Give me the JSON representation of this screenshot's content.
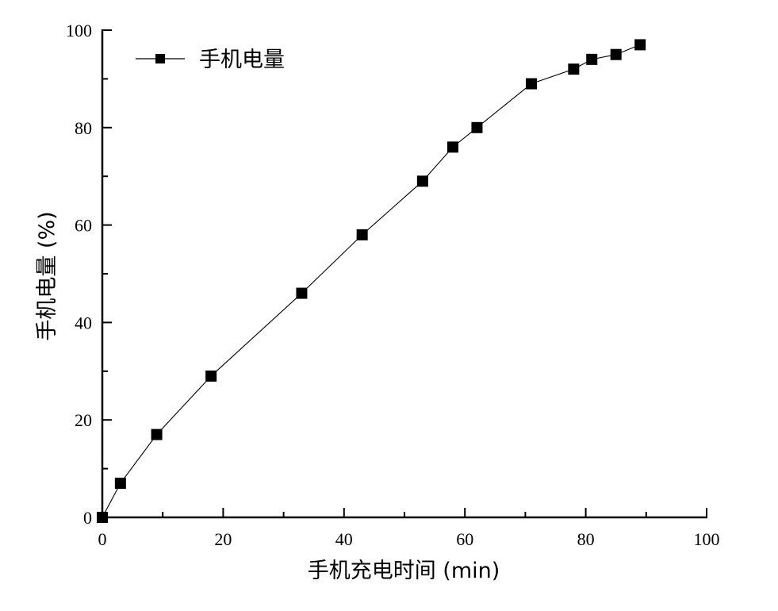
{
  "chart_data": {
    "type": "line",
    "title": "",
    "xlabel": "手机充电时间 (min)",
    "ylabel": "手机电量 (%)",
    "xlim": [
      0,
      100
    ],
    "ylim": [
      0,
      100
    ],
    "x_ticks": [
      "0",
      "20",
      "40",
      "60",
      "80",
      "100"
    ],
    "y_ticks": [
      "0",
      "20",
      "40",
      "60",
      "80",
      "100"
    ],
    "grid": false,
    "legend_position": "upper left",
    "series": [
      {
        "name": "手机电量",
        "marker": "filled-square",
        "color": "#000000",
        "x": [
          0,
          3,
          9,
          18,
          33,
          43,
          53,
          58,
          62,
          71,
          78,
          81,
          85,
          89
        ],
        "values": [
          0,
          7,
          17,
          29,
          46,
          58,
          69,
          76,
          80,
          89,
          92,
          94,
          95,
          97
        ]
      }
    ]
  }
}
